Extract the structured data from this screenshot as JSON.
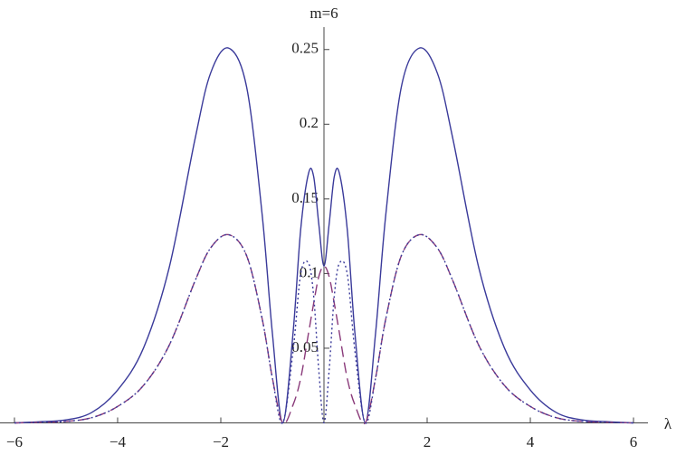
{
  "chart_data": {
    "type": "line",
    "title": "m=6",
    "x_label": "λ",
    "x": [
      -6,
      -5.5,
      -5,
      -4.5,
      -4,
      -3.5,
      -3,
      -2.5,
      -2.2,
      -1.85,
      -1.5,
      -1.2,
      -1,
      -0.8,
      -0.6,
      -0.45,
      -0.3,
      -0.2,
      -0.1,
      0,
      0.1,
      0.2,
      0.3,
      0.45,
      0.6,
      0.8,
      1,
      1.2,
      1.5,
      1.85,
      2.2,
      2.5,
      3,
      3.5,
      4,
      4.5,
      5,
      5.5,
      6
    ],
    "series": [
      {
        "color": "#3a3a9a",
        "dash": "solid",
        "values": [
          0,
          0.0008,
          0.002,
          0.007,
          0.022,
          0.05,
          0.104,
          0.19,
          0.234,
          0.251,
          0.225,
          0.14,
          0.06,
          0,
          0.06,
          0.13,
          0.167,
          0.165,
          0.133,
          0.105,
          0.133,
          0.165,
          0.167,
          0.13,
          0.06,
          0,
          0.06,
          0.14,
          0.225,
          0.251,
          0.234,
          0.19,
          0.104,
          0.05,
          0.022,
          0.007,
          0.002,
          0.0008,
          0
        ]
      },
      {
        "color": "#8a3a7a",
        "dash": "dashed",
        "values": [
          0,
          0.0004,
          0.001,
          0.0035,
          0.011,
          0.025,
          0.052,
          0.095,
          0.117,
          0.126,
          0.112,
          0.07,
          0.03,
          0,
          0.012,
          0.03,
          0.06,
          0.08,
          0.098,
          0.105,
          0.098,
          0.08,
          0.06,
          0.03,
          0.012,
          0,
          0.03,
          0.07,
          0.112,
          0.126,
          0.117,
          0.095,
          0.052,
          0.025,
          0.011,
          0.0035,
          0.001,
          0.0004,
          0
        ]
      },
      {
        "color": "#3a3a9a",
        "dash": "dotted",
        "values": [
          0,
          0.0004,
          0.001,
          0.0035,
          0.011,
          0.025,
          0.052,
          0.095,
          0.117,
          0.126,
          0.112,
          0.07,
          0.03,
          0,
          0.048,
          0.1,
          0.107,
          0.085,
          0.035,
          0,
          0.035,
          0.085,
          0.107,
          0.1,
          0.048,
          0,
          0.03,
          0.07,
          0.112,
          0.126,
          0.117,
          0.095,
          0.052,
          0.025,
          0.011,
          0.0035,
          0.001,
          0.0004,
          0
        ]
      }
    ],
    "xlim": [
      -6.28,
      6.28
    ],
    "ylim": [
      0,
      0.265
    ],
    "xticks": [
      {
        "value": -6,
        "label": "−6"
      },
      {
        "value": -4,
        "label": "−4"
      },
      {
        "value": -2,
        "label": "−2"
      },
      2,
      4,
      6
    ],
    "yticks": [
      0.05,
      0.1,
      0.15,
      0.2,
      0.25
    ]
  }
}
